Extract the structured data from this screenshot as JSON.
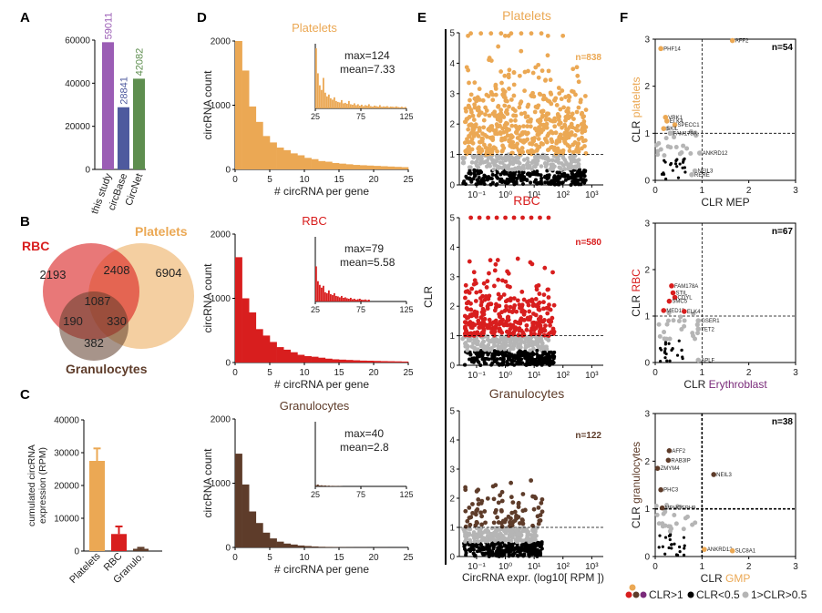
{
  "panels": {
    "A": "A",
    "B": "B",
    "C": "C",
    "D": "D",
    "E": "E",
    "F": "F"
  },
  "colors": {
    "platelets": "#EBA854",
    "rbc": "#D81E1E",
    "granulocytes": "#5E3C2A",
    "purple": "#9B5DB5",
    "blue": "#4E5A9E",
    "green": "#5E8E4F",
    "grey": "#B5B5B5",
    "black": "#000000"
  },
  "panelA": {
    "chart_data": {
      "type": "bar",
      "categories": [
        "this study",
        "circBase",
        "CircNet"
      ],
      "values": [
        59011,
        28841,
        42082
      ],
      "value_labels": [
        "59011",
        "28841",
        "42082"
      ],
      "ylim": [
        0,
        60000
      ],
      "yticks": [
        "0",
        "20000",
        "40000",
        "60000"
      ]
    }
  },
  "panelB": {
    "sets": {
      "rbc": "RBC",
      "platelets": "Platelets",
      "granulocytes": "Granulocytes"
    },
    "chart_data": {
      "type": "venn",
      "regions": {
        "rbc_only": "2193",
        "rbc_platelets": "2408",
        "platelets_only": "6904",
        "all": "1087",
        "rbc_gran": "190",
        "plat_gran": "330",
        "gran_only": "382"
      }
    }
  },
  "panelC": {
    "ylabel_line1": "cumulated circRNA",
    "ylabel_line2": "expression (RPM)",
    "chart_data": {
      "type": "bar",
      "categories": [
        "Platelets",
        "RBC",
        "Granulo."
      ],
      "values": [
        27500,
        5200,
        700
      ],
      "errors": [
        3800,
        2300,
        300
      ],
      "ylim": [
        0,
        40000
      ],
      "yticks": [
        "0",
        "10000",
        "20000",
        "30000",
        "40000"
      ]
    }
  },
  "panelD": {
    "xlabel": "# circRNA per gene",
    "ylabel": "circRNA count",
    "xticks": [
      "0",
      "5",
      "10",
      "15",
      "20",
      "25"
    ],
    "inset_xticks": [
      "25",
      "75",
      "125"
    ],
    "charts": [
      {
        "title": "Platelets",
        "max": "max=124",
        "mean": "mean=7.33",
        "yticks": [
          "0",
          "1000",
          "2000"
        ],
        "chart_data": {
          "type": "histogram",
          "x_start": 1,
          "values": [
            2000,
            1540,
            980,
            740,
            520,
            420,
            340,
            300,
            250,
            220,
            180,
            160,
            130,
            120,
            100,
            90,
            80,
            70,
            65,
            60,
            55,
            50,
            45,
            40,
            35
          ],
          "inset_values": [
            650,
            380,
            250,
            200,
            330,
            170,
            130,
            150,
            110,
            95,
            120,
            80,
            70,
            65,
            90,
            55,
            60,
            50,
            80,
            45,
            40,
            55,
            35,
            45,
            30,
            40,
            25,
            35,
            30,
            45,
            25,
            20,
            30,
            25,
            20,
            35,
            18,
            22,
            20,
            25,
            15,
            20,
            18,
            15,
            22,
            15,
            12,
            18,
            10,
            15
          ]
        }
      },
      {
        "title": "RBC",
        "max": "max=79",
        "mean": "mean=5.58",
        "yticks": [
          "0",
          "1000",
          "2000"
        ],
        "chart_data": {
          "type": "histogram",
          "x_start": 1,
          "values": [
            1640,
            1000,
            780,
            520,
            420,
            320,
            240,
            200,
            160,
            120,
            100,
            90,
            75,
            60,
            50,
            45,
            40,
            35,
            30,
            28,
            25,
            22,
            20,
            18,
            15
          ],
          "inset_values": [
            380,
            220,
            180,
            150,
            170,
            100,
            90,
            120,
            80,
            70,
            90,
            60,
            55,
            45,
            60,
            40,
            45,
            35,
            30,
            40,
            25,
            30,
            20,
            25,
            30,
            20,
            18,
            22,
            15,
            20
          ]
        }
      },
      {
        "title": "Granulocytes",
        "max": "max=40",
        "mean": "mean=2.8",
        "yticks": [
          "0",
          "1000",
          "2000"
        ],
        "chart_data": {
          "type": "histogram",
          "x_start": 1,
          "values": [
            1460,
            980,
            560,
            380,
            230,
            140,
            90,
            60,
            45,
            30,
            22,
            15,
            10,
            8,
            6,
            4,
            3,
            2,
            2,
            1,
            1,
            1,
            0,
            0,
            0
          ],
          "inset_values": [
            15,
            20,
            10,
            12,
            8,
            10,
            6,
            8,
            5,
            6,
            4,
            5,
            3,
            4,
            2
          ]
        }
      }
    ]
  },
  "panelE": {
    "ylabel": "CLR",
    "xlabel": "CircRNA expr. (log10[ RPM ])",
    "xticks": [
      "10⁻¹",
      "10⁰",
      "10¹",
      "10²",
      "10³"
    ],
    "yticks": [
      "0",
      "1",
      "2",
      "3",
      "4",
      "5"
    ],
    "charts": [
      {
        "title": "Platelets",
        "count": "n=838"
      },
      {
        "title": "RBC",
        "count": "n=580"
      },
      {
        "title": "Granulocytes",
        "count": "n=122"
      }
    ]
  },
  "panelF": {
    "ticks": [
      "0",
      "1",
      "2",
      "3"
    ],
    "charts": [
      {
        "ylabel_prefix": "CLR ",
        "ylabel_colored": "platelets",
        "xlabel_prefix": "CLR ",
        "xlabel_colored": "MEP",
        "count": "n=54",
        "chart_data": {
          "type": "scatter",
          "labeled_points": [
            {
              "label": "AFF2",
              "x": 1.65,
              "y": 2.97,
              "c": "platelets"
            },
            {
              "label": "PHF14",
              "x": 0.12,
              "y": 2.8,
              "c": "platelets"
            },
            {
              "label": "VRK1",
              "x": 0.22,
              "y": 1.34,
              "c": "platelets"
            },
            {
              "label": "ELK4",
              "x": 0.25,
              "y": 1.26,
              "c": "platelets"
            },
            {
              "label": "SPECC1",
              "x": 0.42,
              "y": 1.18,
              "c": "platelets"
            },
            {
              "label": "SKIL",
              "x": 0.18,
              "y": 1.1,
              "c": "platelets"
            },
            {
              "label": "FAM178A",
              "x": 0.32,
              "y": 1.0,
              "c": "grey"
            },
            {
              "label": "ANKRD12",
              "x": 0.95,
              "y": 0.58,
              "c": "grey"
            },
            {
              "label": "NEIL3",
              "x": 0.85,
              "y": 0.2,
              "c": "grey"
            },
            {
              "label": "RERE",
              "x": 0.78,
              "y": 0.12,
              "c": "grey"
            }
          ]
        }
      },
      {
        "ylabel_prefix": "CLR ",
        "ylabel_colored": "RBC",
        "xlabel_prefix": "CLR ",
        "xlabel_colored": "Erythroblast",
        "count": "n=67",
        "chart_data": {
          "type": "scatter",
          "labeled_points": [
            {
              "label": "FAM178A",
              "x": 0.35,
              "y": 1.65,
              "c": "rbc"
            },
            {
              "label": "STIL",
              "x": 0.38,
              "y": 1.5,
              "c": "rbc"
            },
            {
              "label": "CDYL",
              "x": 0.42,
              "y": 1.4,
              "c": "rbc"
            },
            {
              "label": "SMC5",
              "x": 0.3,
              "y": 1.32,
              "c": "rbc"
            },
            {
              "label": "MED13",
              "x": 0.18,
              "y": 1.12,
              "c": "rbc"
            },
            {
              "label": "ELK4",
              "x": 0.62,
              "y": 1.1,
              "c": "rbc"
            },
            {
              "label": "GSER1",
              "x": 0.92,
              "y": 0.9,
              "c": "grey"
            },
            {
              "label": "TET2",
              "x": 0.92,
              "y": 0.72,
              "c": "grey"
            },
            {
              "label": "APLF",
              "x": 0.92,
              "y": 0.05,
              "c": "grey"
            }
          ]
        }
      },
      {
        "ylabel_prefix": "CLR ",
        "ylabel_colored": "granulocytes",
        "xlabel_prefix": "CLR ",
        "xlabel_colored": "GMP",
        "count": "n=38",
        "chart_data": {
          "type": "scatter",
          "labeled_points": [
            {
              "label": "AFF2",
              "x": 0.3,
              "y": 2.22,
              "c": "granulocytes"
            },
            {
              "label": "RAB3IP",
              "x": 0.28,
              "y": 2.02,
              "c": "granulocytes"
            },
            {
              "label": "ZMYM4",
              "x": 0.05,
              "y": 1.85,
              "c": "granulocytes"
            },
            {
              "label": "NEIL3",
              "x": 1.25,
              "y": 1.72,
              "c": "granulocytes"
            },
            {
              "label": "PHC3",
              "x": 0.12,
              "y": 1.4,
              "c": "granulocytes"
            },
            {
              "label": "MPHOSPH9",
              "x": 0.15,
              "y": 1.02,
              "c": "granulocytes"
            },
            {
              "label": "ANKRD12",
              "x": 1.05,
              "y": 0.15,
              "c": "platelets"
            },
            {
              "label": "SLC8A1",
              "x": 1.65,
              "y": 0.12,
              "c": "platelets"
            }
          ]
        }
      }
    ]
  },
  "legend": {
    "high": "CLR>1",
    "low": "CLR<0.5",
    "mid": "1>CLR>0.5"
  }
}
